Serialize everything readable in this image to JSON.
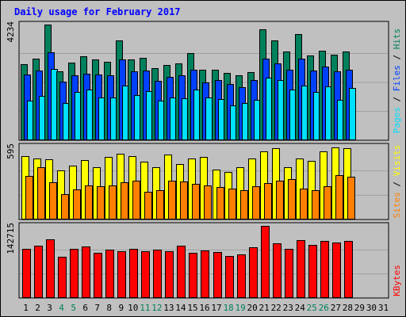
{
  "title": "Daily usage for February 2017",
  "colors": {
    "background": "#c0c0c0",
    "hits": "#00805c",
    "files": "#0040ff",
    "pages": "#00e0ff",
    "visits": "#ffff00",
    "sites": "#ff8000",
    "kbytes": "#ff0000",
    "weekend": "#00805c",
    "weekday": "#000000"
  },
  "chart_data": [
    {
      "type": "bar",
      "name": "hits-files-pages",
      "categories": [
        "1",
        "2",
        "3",
        "4",
        "5",
        "6",
        "7",
        "8",
        "9",
        "10",
        "11",
        "12",
        "13",
        "14",
        "15",
        "16",
        "17",
        "18",
        "19",
        "20",
        "21",
        "22",
        "23",
        "24",
        "25",
        "26",
        "27",
        "28",
        "29",
        "30",
        "31"
      ],
      "max_label": "4234",
      "ylim": [
        0,
        4234
      ],
      "legend": [
        "Pages",
        "Files",
        "Hits"
      ],
      "series": [
        {
          "name": "Hits",
          "values": [
            2780,
            2990,
            4234,
            2510,
            2840,
            3080,
            2960,
            2870,
            3640,
            2950,
            3020,
            2640,
            2760,
            2810,
            3190,
            2580,
            2590,
            2460,
            2390,
            2500,
            4070,
            3650,
            3250,
            3900,
            3100,
            3270,
            3140,
            3260,
            null,
            null,
            null
          ]
        },
        {
          "name": "Files",
          "values": [
            2410,
            2550,
            3230,
            2140,
            2390,
            2440,
            2410,
            2380,
            2950,
            2510,
            2560,
            2170,
            2330,
            2380,
            2580,
            2130,
            2200,
            2050,
            1930,
            2200,
            3000,
            2820,
            2570,
            2980,
            2550,
            2700,
            2520,
            2570,
            null,
            null,
            null
          ]
        },
        {
          "name": "Pages",
          "values": [
            1460,
            1620,
            2620,
            1370,
            1760,
            1860,
            1560,
            1570,
            2010,
            1640,
            1800,
            1450,
            1570,
            1550,
            1870,
            1560,
            1520,
            1280,
            1350,
            1490,
            2290,
            2190,
            1860,
            2010,
            1760,
            1960,
            1480,
            1910,
            null,
            null,
            null
          ]
        }
      ]
    },
    {
      "type": "bar",
      "name": "visits-sites",
      "categories": [
        "1",
        "2",
        "3",
        "4",
        "5",
        "6",
        "7",
        "8",
        "9",
        "10",
        "11",
        "12",
        "13",
        "14",
        "15",
        "16",
        "17",
        "18",
        "19",
        "20",
        "21",
        "22",
        "23",
        "24",
        "25",
        "26",
        "27",
        "28",
        "29",
        "30",
        "31"
      ],
      "max_label": "595",
      "ylim": [
        0,
        595
      ],
      "legend": [
        "Sites",
        "Visits"
      ],
      "series": [
        {
          "name": "Visits",
          "values": [
            520,
            500,
            490,
            400,
            440,
            485,
            430,
            510,
            535,
            520,
            470,
            430,
            530,
            450,
            500,
            510,
            410,
            390,
            425,
            495,
            555,
            580,
            425,
            500,
            480,
            555,
            590,
            580,
            null,
            null,
            null
          ]
        },
        {
          "name": "Sites",
          "values": [
            355,
            425,
            305,
            210,
            245,
            275,
            270,
            280,
            305,
            315,
            225,
            240,
            320,
            310,
            290,
            280,
            265,
            250,
            240,
            270,
            300,
            320,
            330,
            250,
            240,
            270,
            365,
            350,
            null,
            null,
            null
          ]
        }
      ]
    },
    {
      "type": "bar",
      "name": "kbytes",
      "categories": [
        "1",
        "2",
        "3",
        "4",
        "5",
        "6",
        "7",
        "8",
        "9",
        "10",
        "11",
        "12",
        "13",
        "14",
        "15",
        "16",
        "17",
        "18",
        "19",
        "20",
        "21",
        "22",
        "23",
        "24",
        "25",
        "26",
        "27",
        "28",
        "29",
        "30",
        "31"
      ],
      "max_label": "142715",
      "ylim": [
        0,
        142715
      ],
      "legend": [
        "KBytes"
      ],
      "series": [
        {
          "name": "KBytes",
          "values": [
            98000,
            104000,
            116000,
            82000,
            97000,
            102000,
            90000,
            95000,
            92000,
            97000,
            93000,
            96000,
            92000,
            103000,
            89000,
            94000,
            91000,
            83000,
            86000,
            100000,
            142715,
            108000,
            98000,
            115000,
            105000,
            113000,
            109000,
            113000,
            null,
            null,
            null
          ]
        }
      ]
    }
  ],
  "weekend_days": [
    "4",
    "5",
    "11",
    "12",
    "18",
    "19",
    "25",
    "26"
  ]
}
